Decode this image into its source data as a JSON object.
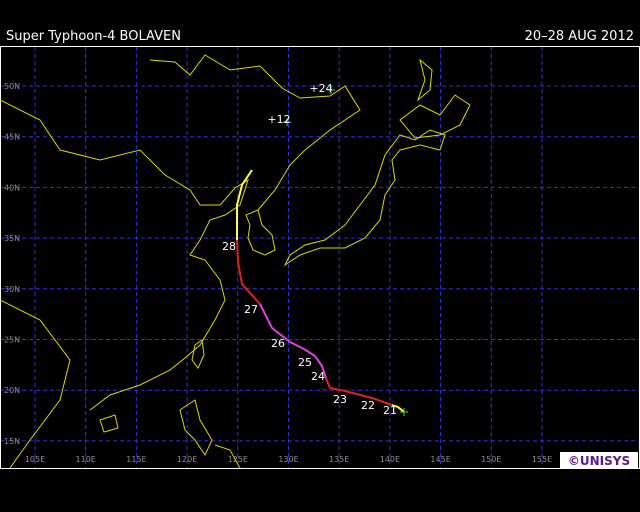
{
  "header": {
    "title": "Super Typhoon-4 BOLAVEN",
    "date": "20–28 AUG 2012"
  },
  "latitude_labels": [
    "50N",
    "45N",
    "40N",
    "35N",
    "30N",
    "25N",
    "20N",
    "15N"
  ],
  "longitude_labels": [
    "105E",
    "110E",
    "115E",
    "120E",
    "125E",
    "130E",
    "135E",
    "140E",
    "145E",
    "150E",
    "155E"
  ],
  "day_labels": [
    "21",
    "22",
    "23",
    "24",
    "25",
    "26",
    "27",
    "28"
  ],
  "forecast_labels": [
    "+24",
    "+12"
  ],
  "logo": "©UNISYS"
}
